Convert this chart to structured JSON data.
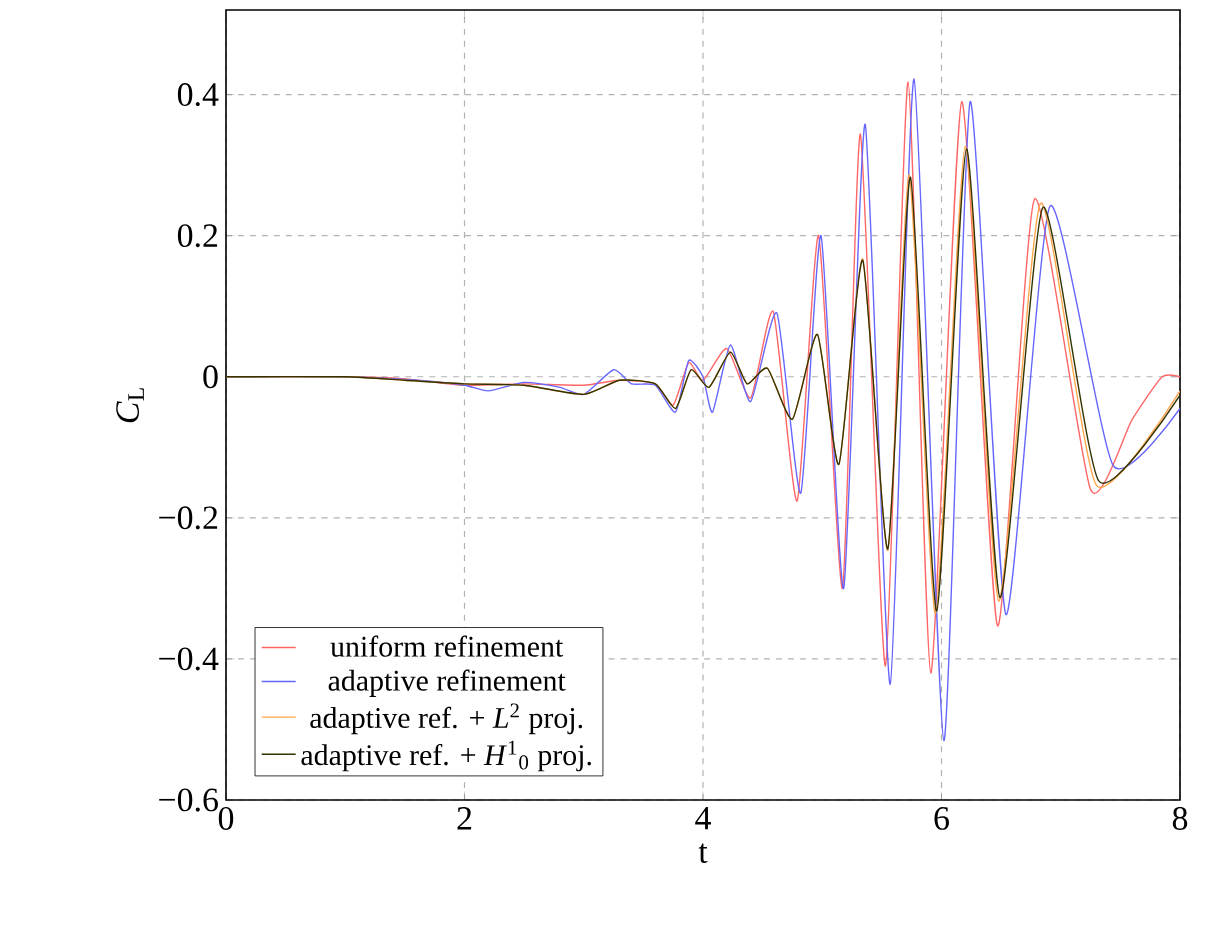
{
  "chart_data": {
    "type": "line",
    "xlabel": "t",
    "ylabel": "*C*$_{L}$",
    "xlim": [
      0,
      8
    ],
    "ylim": [
      -0.6,
      0.52
    ],
    "xticks": [
      0,
      2,
      4,
      6,
      8
    ],
    "yticks": [
      {
        "value": -0.6,
        "label": "−0.6"
      },
      {
        "value": -0.4,
        "label": "−0.4"
      },
      {
        "value": -0.2,
        "label": "−0.2"
      },
      0,
      0.2,
      0.4
    ],
    "grid": true,
    "legend": "bottom left",
    "marker": "none",
    "line_style": "solid",
    "series": [
      {
        "name": "uniform refinement",
        "color": "#ff6666",
        "x": [
          0,
          1,
          1.5,
          2,
          2.5,
          3,
          3.3,
          3.6,
          3.75,
          3.88,
          4.0,
          4.2,
          4.4,
          4.59,
          4.79,
          4.97,
          5.17,
          5.32,
          5.53,
          5.72,
          5.91,
          6.17,
          6.47,
          6.78,
          7.25,
          7.6,
          7.85,
          8
        ],
        "values": [
          0,
          0,
          -0.003,
          -0.012,
          -0.01,
          -0.012,
          -0.005,
          -0.01,
          -0.04,
          0.02,
          -0.005,
          0.04,
          -0.03,
          0.092,
          -0.176,
          0.2,
          -0.3,
          0.344,
          -0.41,
          0.418,
          -0.42,
          0.39,
          -0.353,
          0.252,
          -0.16,
          -0.06,
          0,
          0
        ]
      },
      {
        "name": "adaptive refinement",
        "color": "#6666ff",
        "x": [
          0,
          1,
          1.6,
          2,
          2.2,
          2.5,
          2.8,
          3.0,
          3.25,
          3.4,
          3.6,
          3.77,
          3.88,
          4.0,
          4.08,
          4.23,
          4.4,
          4.62,
          4.82,
          4.99,
          5.18,
          5.36,
          5.57,
          5.77,
          6.02,
          6.24,
          6.54,
          6.91,
          7.44,
          8
        ],
        "values": [
          0,
          0,
          -0.005,
          -0.012,
          -0.02,
          -0.008,
          -0.015,
          -0.025,
          0.01,
          -0.01,
          -0.012,
          -0.05,
          0.023,
          0,
          -0.05,
          0.045,
          -0.035,
          0.09,
          -0.165,
          0.2,
          -0.3,
          0.358,
          -0.436,
          0.422,
          -0.516,
          0.39,
          -0.337,
          0.242,
          -0.126,
          -0.045
        ]
      },
      {
        "name": "adaptive ref. + *L*$^{2}$ proj.",
        "color": "#ffa64d",
        "x": [
          0,
          1,
          1.5,
          2,
          2.5,
          3,
          3.3,
          3.6,
          3.77,
          3.9,
          4.05,
          4.23,
          4.37,
          4.54,
          4.75,
          4.96,
          5.14,
          5.34,
          5.55,
          5.73,
          5.95,
          6.2,
          6.48,
          6.83,
          7.3,
          8
        ],
        "values": [
          0,
          0,
          -0.005,
          -0.01,
          -0.012,
          -0.025,
          -0.005,
          -0.01,
          -0.045,
          0.01,
          -0.015,
          0.035,
          -0.01,
          0.012,
          -0.06,
          0.06,
          -0.124,
          0.167,
          -0.246,
          0.286,
          -0.336,
          0.327,
          -0.318,
          0.246,
          -0.154,
          -0.02
        ]
      },
      {
        "name": "adaptive ref. + *H*$^{1}$$_{0}$ proj.",
        "color": "#333300",
        "x": [
          0,
          1,
          1.5,
          2,
          2.5,
          3,
          3.3,
          3.6,
          3.77,
          3.9,
          4.05,
          4.23,
          4.37,
          4.54,
          4.75,
          4.96,
          5.14,
          5.34,
          5.55,
          5.74,
          5.96,
          6.21,
          6.49,
          6.85,
          7.32,
          8
        ],
        "values": [
          0,
          0,
          -0.005,
          -0.01,
          -0.012,
          -0.025,
          -0.005,
          -0.01,
          -0.045,
          0.01,
          -0.015,
          0.035,
          -0.01,
          0.012,
          -0.06,
          0.06,
          -0.124,
          0.165,
          -0.244,
          0.283,
          -0.332,
          0.323,
          -0.313,
          0.24,
          -0.148,
          -0.026
        ]
      }
    ]
  }
}
